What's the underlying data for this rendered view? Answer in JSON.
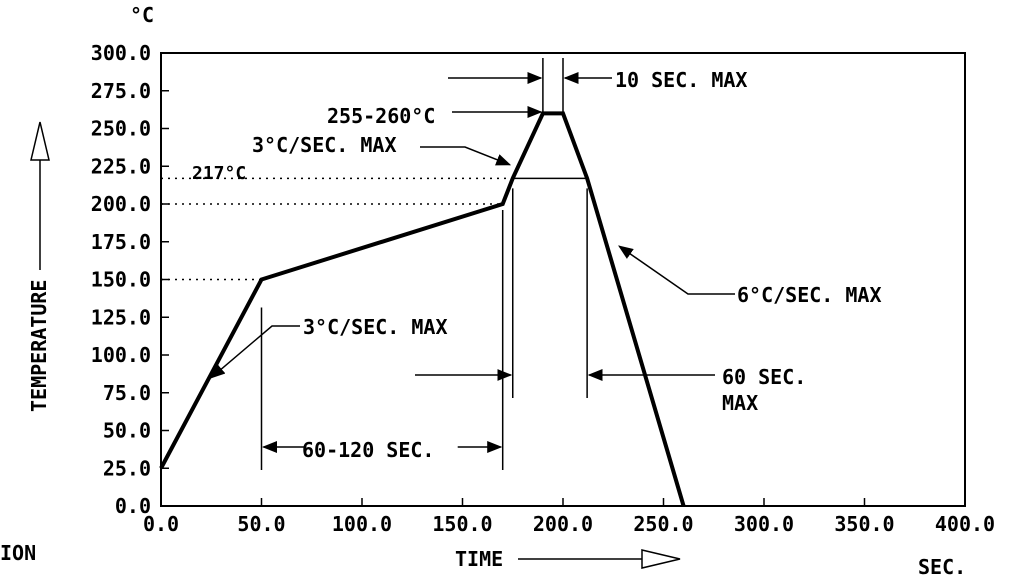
{
  "chart_data": {
    "type": "line",
    "title": "",
    "xlabel": "TIME",
    "ylabel": "TEMPERATURE",
    "y_unit": "°C",
    "x_unit": "SEC.",
    "xlim": [
      0,
      400
    ],
    "ylim": [
      0,
      300
    ],
    "x_ticks": [
      "0.0",
      "50.0",
      "100.0",
      "150.0",
      "200.0",
      "250.0",
      "300.0",
      "350.0",
      "400.0"
    ],
    "y_ticks": [
      "0.0",
      "25.0",
      "50.0",
      "75.0",
      "100.0",
      "125.0",
      "150.0",
      "175.0",
      "200.0",
      "225.0",
      "250.0",
      "275.0",
      "300.0"
    ],
    "grid": false,
    "series": [
      {
        "x": [
          0,
          50,
          170,
          175,
          190,
          200,
          212,
          260
        ],
        "y": [
          25,
          150,
          200,
          217,
          260,
          260,
          217,
          0
        ]
      }
    ],
    "reference_levels": [
      {
        "label": "217°C",
        "y": 217
      },
      {
        "y": 200
      },
      {
        "y": 150
      }
    ],
    "annotations": {
      "peak": "255-260°C",
      "peak_time": "10 SEC. MAX",
      "ramp_up_preheat": "3°C/SEC. MAX",
      "ramp_up_reflow": "3°C/SEC. MAX",
      "ramp_down": "6°C/SEC. MAX",
      "soak_time": "60-120 SEC.",
      "above_liquidus_line1": "60 SEC.",
      "above_liquidus_line2": "MAX"
    },
    "cropped_fragment": "ION"
  }
}
